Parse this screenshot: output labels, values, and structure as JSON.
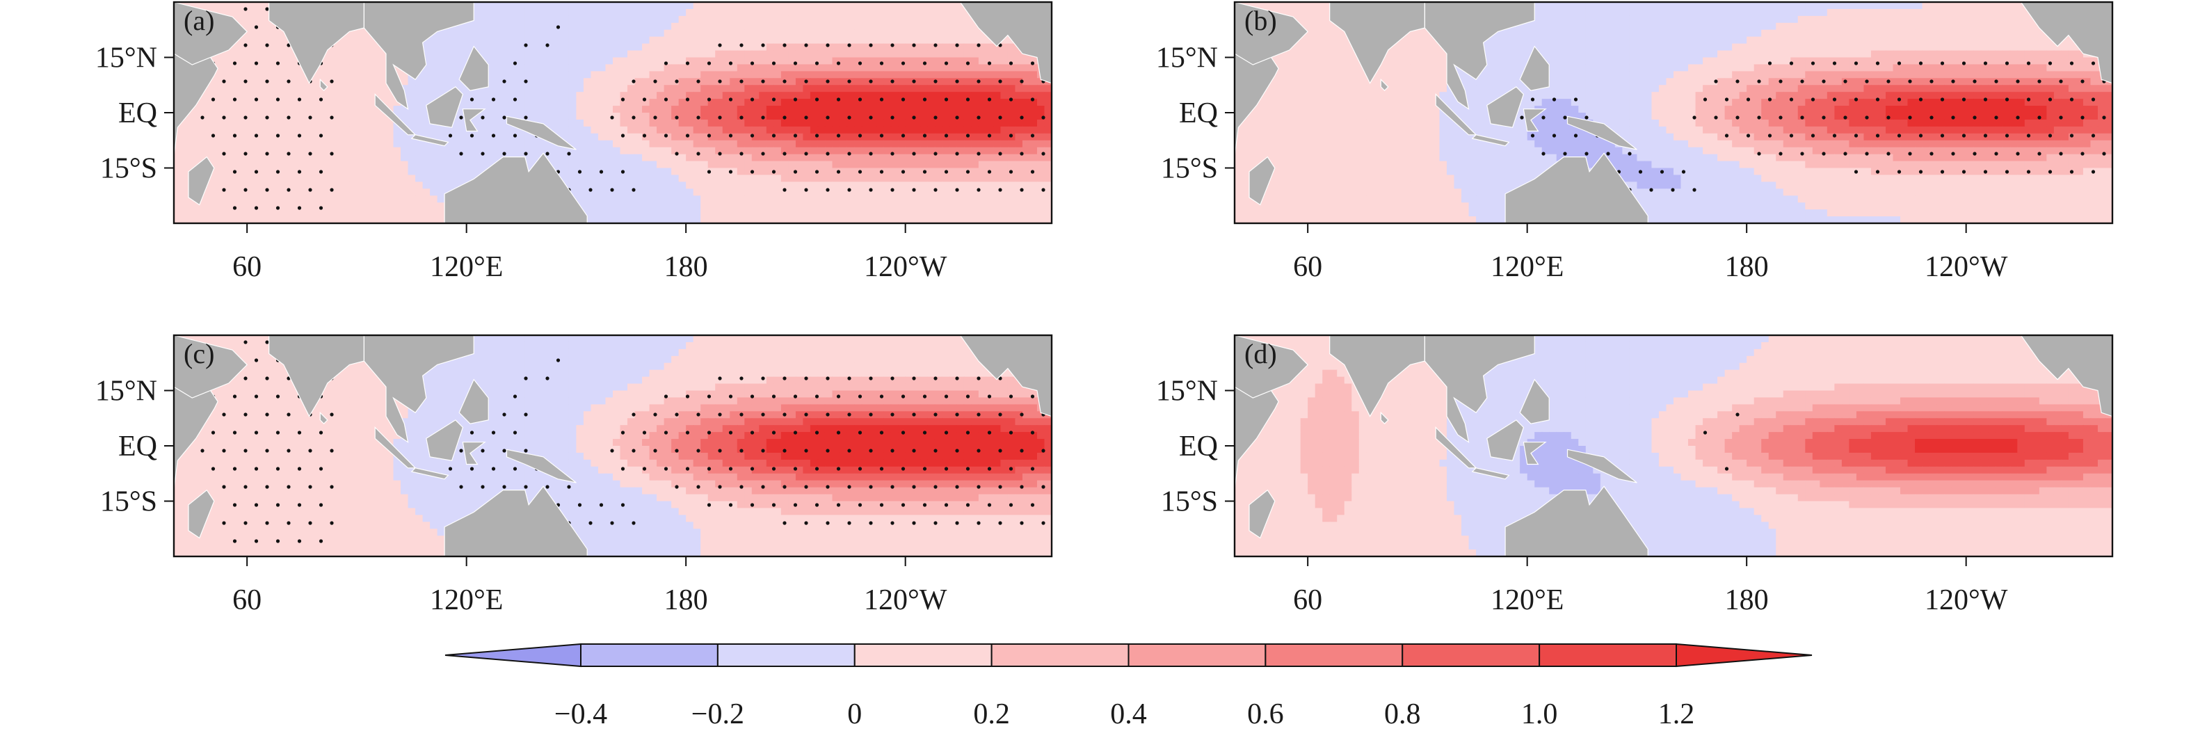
{
  "chart_data": {
    "type": "heatmap",
    "description_units": "anomaly",
    "panels": [
      {
        "label": "(a)",
        "amplitude": 1.2,
        "stipple": "dense",
        "x_ticks": [
          "60",
          "120°E",
          "180",
          "120°W"
        ],
        "y_ticks": [
          "15°N",
          "EQ",
          "15°S"
        ]
      },
      {
        "label": "(b)",
        "amplitude": 1.0,
        "stipple": "medium",
        "x_ticks": [
          "60",
          "120°E",
          "180",
          "120°W"
        ],
        "y_ticks": [
          "15°N",
          "EQ",
          "15°S"
        ]
      },
      {
        "label": "(c)",
        "amplitude": 1.2,
        "stipple": "dense",
        "x_ticks": [
          "60",
          "120°E",
          "180",
          "120°W"
        ],
        "y_ticks": [
          "15°N",
          "EQ",
          "15°S"
        ]
      },
      {
        "label": "(d)",
        "amplitude": 0.9,
        "stipple": "sparse",
        "x_ticks": [
          "60",
          "120°E",
          "180",
          "120°W"
        ],
        "y_ticks": [
          "15°N",
          "EQ",
          "15°S"
        ]
      }
    ],
    "x_range_deg_lon": [
      40,
      280
    ],
    "y_range_deg_lat": [
      -30,
      30
    ],
    "colorbar": {
      "levels": [
        -0.4,
        -0.2,
        0,
        0.2,
        0.4,
        0.6,
        0.8,
        1.0,
        1.2
      ],
      "tick_labels": [
        "−0.4",
        "−0.2",
        "0",
        "0.2",
        "0.4",
        "0.6",
        "0.8",
        "1.0",
        "1.2"
      ],
      "colors": [
        "#9a9af0",
        "#b8b8f6",
        "#d8d8fb",
        "#fdd8d8",
        "#fbbcbc",
        "#f8a0a0",
        "#f48282",
        "#f06262",
        "#ec4848",
        "#e83030"
      ],
      "extend": "both"
    },
    "land_color": "#b0b0b0"
  }
}
